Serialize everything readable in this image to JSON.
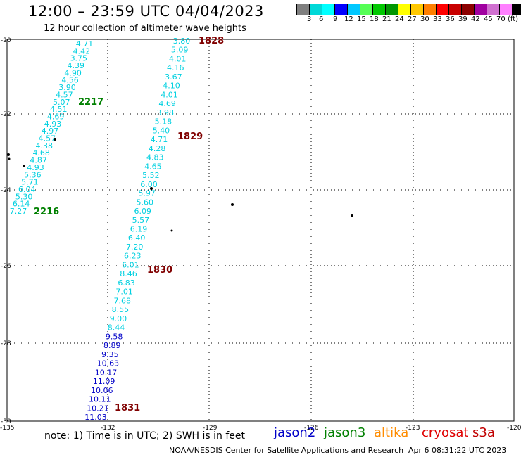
{
  "header": {
    "title": "12:00 – 23:59 UTC 04/04/2023",
    "subtitle": "12 hour collection of altimeter wave heights"
  },
  "colorbar": {
    "colors": [
      "#7f7f7f",
      "#00d8d8",
      "#00ffff",
      "#0000ff",
      "#00c8ff",
      "#55ff55",
      "#00c800",
      "#009600",
      "#ffff00",
      "#ffc800",
      "#ff7f00",
      "#ff0000",
      "#c80000",
      "#8b0000",
      "#a000a0",
      "#d070d0",
      "#ff80ff",
      "#000000"
    ],
    "labels": [
      "3",
      "6",
      "9",
      "12",
      "15",
      "18",
      "21",
      "24",
      "27",
      "30",
      "33",
      "36",
      "39",
      "42",
      "45",
      "70",
      "(ft)"
    ]
  },
  "map": {
    "lat_ticks": [
      "-20",
      "-22",
      "-24",
      "-26",
      "-28",
      "-30"
    ],
    "lon_ticks": [
      "-135",
      "-132",
      "-129",
      "-126",
      "-123",
      "-120"
    ],
    "track_colors": {
      "cyan": "#00d0e0",
      "blue": "#0000c8",
      "darkred": "#800000",
      "green": "#008000"
    },
    "track_a": [
      {
        "v": "4.71",
        "c": "cyan"
      },
      {
        "v": "4.42",
        "c": "cyan"
      },
      {
        "v": "3.75",
        "c": "cyan"
      },
      {
        "v": "4.39",
        "c": "cyan"
      },
      {
        "v": "4.90",
        "c": "cyan"
      },
      {
        "v": "4.56",
        "c": "cyan"
      },
      {
        "v": "3.90",
        "c": "cyan"
      },
      {
        "v": "4.57",
        "c": "cyan"
      },
      {
        "v": "5.07",
        "c": "cyan"
      },
      {
        "v": "4.51",
        "c": "cyan"
      },
      {
        "v": "4.69",
        "c": "cyan"
      },
      {
        "v": "4.93",
        "c": "cyan"
      },
      {
        "v": "4.97",
        "c": "cyan"
      },
      {
        "v": "4.57",
        "c": "cyan"
      },
      {
        "v": "4.38",
        "c": "cyan"
      },
      {
        "v": "4.68",
        "c": "cyan"
      },
      {
        "v": "4.87",
        "c": "cyan"
      },
      {
        "v": "4.93",
        "c": "cyan"
      },
      {
        "v": "5.36",
        "c": "cyan"
      },
      {
        "v": "5.71",
        "c": "cyan"
      },
      {
        "v": "6.04",
        "c": "cyan"
      },
      {
        "v": "5.30",
        "c": "cyan"
      },
      {
        "v": "6.14",
        "c": "cyan"
      },
      {
        "v": "7.27",
        "c": "cyan"
      }
    ],
    "track_b": [
      {
        "v": "3.80",
        "c": "cyan"
      },
      {
        "v": "5.09",
        "c": "cyan"
      },
      {
        "v": "4.01",
        "c": "cyan"
      },
      {
        "v": "4.16",
        "c": "cyan"
      },
      {
        "v": "3.67",
        "c": "cyan"
      },
      {
        "v": "4.10",
        "c": "cyan"
      },
      {
        "v": "4.01",
        "c": "cyan"
      },
      {
        "v": "4.69",
        "c": "cyan"
      },
      {
        "v": "3.98",
        "c": "cyan"
      },
      {
        "v": "5.18",
        "c": "cyan"
      },
      {
        "v": "5.40",
        "c": "cyan"
      },
      {
        "v": "4.71",
        "c": "cyan"
      },
      {
        "v": "4.28",
        "c": "cyan"
      },
      {
        "v": "4.83",
        "c": "cyan"
      },
      {
        "v": "4.65",
        "c": "cyan"
      },
      {
        "v": "5.52",
        "c": "cyan"
      },
      {
        "v": "6.00",
        "c": "cyan"
      },
      {
        "v": "5.97",
        "c": "cyan"
      },
      {
        "v": "5.60",
        "c": "cyan"
      },
      {
        "v": "6.09",
        "c": "cyan"
      },
      {
        "v": "5.57",
        "c": "cyan"
      },
      {
        "v": "6.19",
        "c": "cyan"
      },
      {
        "v": "6.40",
        "c": "cyan"
      },
      {
        "v": "7.20",
        "c": "cyan"
      },
      {
        "v": "6.23",
        "c": "cyan"
      },
      {
        "v": "6.01",
        "c": "cyan"
      },
      {
        "v": "8.46",
        "c": "cyan"
      },
      {
        "v": "6.83",
        "c": "cyan"
      },
      {
        "v": "7.01",
        "c": "cyan"
      },
      {
        "v": "7.68",
        "c": "cyan"
      },
      {
        "v": "8.55",
        "c": "cyan"
      },
      {
        "v": "9.00",
        "c": "cyan"
      },
      {
        "v": "8.44",
        "c": "cyan"
      },
      {
        "v": "9.58",
        "c": "blue"
      },
      {
        "v": "8.89",
        "c": "blue"
      },
      {
        "v": "9.35",
        "c": "blue"
      },
      {
        "v": "10.63",
        "c": "blue"
      },
      {
        "v": "10.17",
        "c": "blue"
      },
      {
        "v": "11.09",
        "c": "blue"
      },
      {
        "v": "10.06",
        "c": "blue"
      },
      {
        "v": "10.11",
        "c": "blue"
      },
      {
        "v": "10.21",
        "c": "blue"
      },
      {
        "v": "11.03",
        "c": "blue"
      }
    ],
    "time_labels": [
      {
        "t": "1828",
        "c": "darkred"
      },
      {
        "t": "2217",
        "c": "green"
      },
      {
        "t": "1829",
        "c": "darkred"
      },
      {
        "t": "2216",
        "c": "green"
      },
      {
        "t": "1830",
        "c": "darkred"
      },
      {
        "t": "1831",
        "c": "darkred"
      }
    ]
  },
  "footer": {
    "note": "note:  1) Time is in UTC;  2) SWH is in feet",
    "legend": [
      {
        "name": "jason2",
        "color": "#0000c8"
      },
      {
        "name": "jason3",
        "color": "#008000"
      },
      {
        "name": "altika",
        "color": "#ff8c00"
      },
      {
        "name": "cryosat",
        "color": "#e00000"
      },
      {
        "name": "s3a",
        "color": "#c00000"
      }
    ],
    "credit": "NOAA/NESDIS Center for Satellite Applications and Research",
    "timestamp": "Apr  6 08:31:22 UTC 2023"
  }
}
